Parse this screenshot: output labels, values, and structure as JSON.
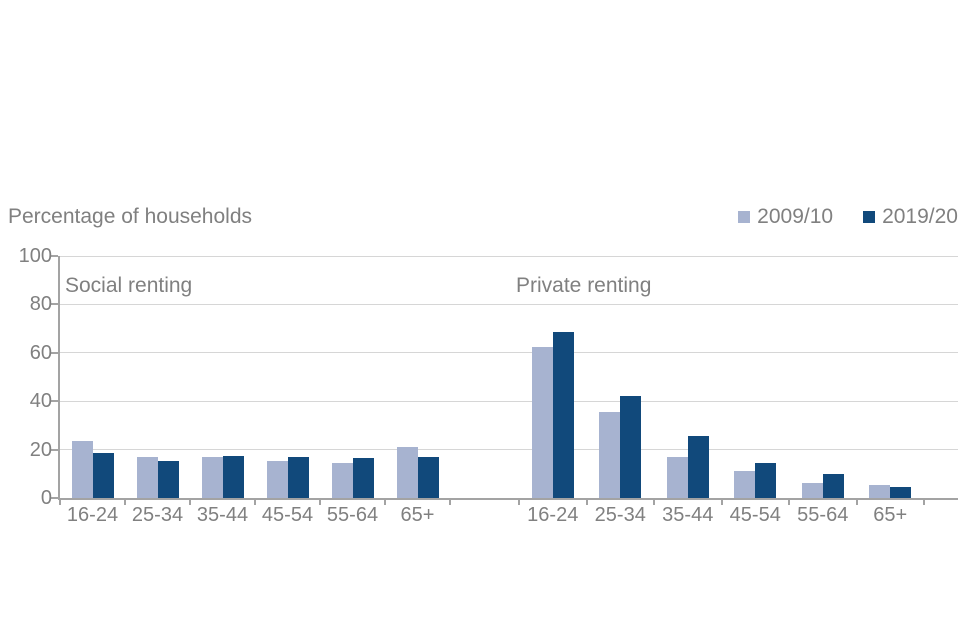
{
  "chart_data": {
    "type": "bar",
    "title": "Percentage of households",
    "ylabel": "Percentage of households",
    "ylim": [
      0,
      100
    ],
    "yticks": [
      0,
      20,
      40,
      60,
      80,
      100
    ],
    "grid": true,
    "legend_position": "top-right",
    "categories": [
      "16-24",
      "25-34",
      "35-44",
      "45-54",
      "55-64",
      "65+"
    ],
    "legend": [
      {
        "name": "2009/10",
        "color": "#a7b3d0"
      },
      {
        "name": "2019/20",
        "color": "#11497b"
      }
    ],
    "panels": [
      {
        "label": "Social renting",
        "series": [
          {
            "name": "2009/10",
            "values": [
              23.5,
              17,
              17,
              15.5,
              14.5,
              21
            ]
          },
          {
            "name": "2019/20",
            "values": [
              18.5,
              15.5,
              17.5,
              17,
              16.5,
              17
            ]
          }
        ]
      },
      {
        "label": "Private renting",
        "series": [
          {
            "name": "2009/10",
            "values": [
              62.5,
              35.5,
              17,
              11,
              6,
              5.5
            ]
          },
          {
            "name": "2019/20",
            "values": [
              68.5,
              42,
              25.5,
              14.5,
              10,
              4.5
            ]
          }
        ]
      }
    ],
    "colors": {
      "series_2009_10": "#a7b3d0",
      "series_2019_20": "#11497b",
      "gridline": "#d6d6d6",
      "axis": "#a3a3a3",
      "text": "#808080"
    }
  }
}
